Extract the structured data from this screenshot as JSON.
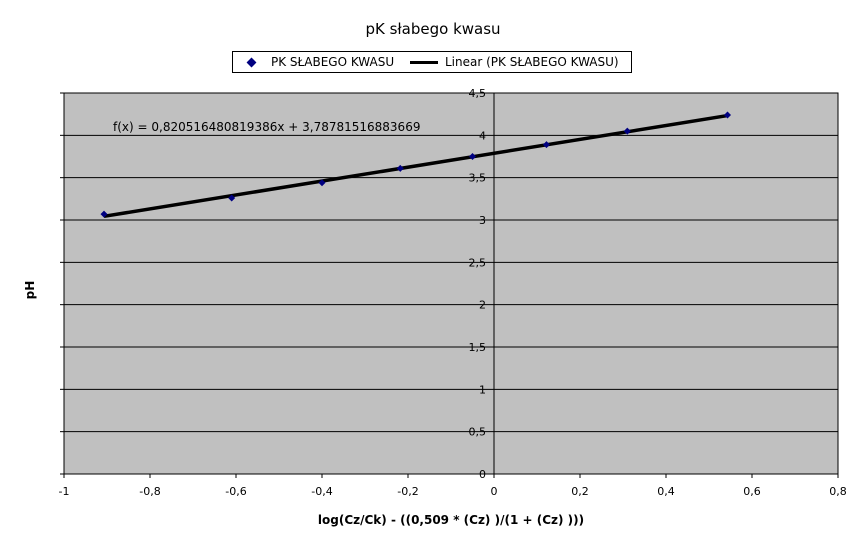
{
  "chart_data": {
    "type": "scatter",
    "title": "pK słabego kwasu",
    "xlabel": "log(Cz/Ck) - ((0,509 * (Cz) )/(1 + (Cz) )))",
    "ylabel": "pH",
    "xlim": [
      -1,
      0.8
    ],
    "ylim": [
      0,
      4.5
    ],
    "xticks": [
      -1,
      -0.8,
      -0.6,
      -0.4,
      -0.2,
      0,
      0.2,
      0.4,
      0.6,
      0.8
    ],
    "xtick_labels": [
      "-1",
      "-0,8",
      "-0,6",
      "-0,4",
      "-0,2",
      "0",
      "0,2",
      "0,4",
      "0,6",
      "0,8"
    ],
    "yticks": [
      0,
      0.5,
      1,
      1.5,
      2,
      2.5,
      3,
      3.5,
      4,
      4.5
    ],
    "ytick_labels": [
      "0",
      "0,5",
      "1",
      "1,5",
      "2",
      "2,5",
      "3",
      "3,5",
      "4",
      "4,5"
    ],
    "grid": "horizontal",
    "background_color": "#c0c0c0",
    "marker_color": "#000080",
    "trend_color": "#000000",
    "legend_position": "top",
    "legend": [
      "PK SŁABEGO KWASU",
      "Linear (PK SŁABEGO KWASU)"
    ],
    "series": [
      {
        "name": "PK SŁABEGO KWASU",
        "marker": "diamond",
        "x": [
          -0.907,
          -0.61,
          -0.4,
          -0.218,
          -0.05,
          0.122,
          0.31,
          0.543
        ],
        "y": [
          3.07,
          3.26,
          3.44,
          3.61,
          3.75,
          3.89,
          4.05,
          4.24
        ]
      }
    ],
    "trendline": {
      "name": "Linear (PK SŁABEGO KWASU)",
      "slope": 0.820516480819386,
      "intercept": 3.78781516883669,
      "x_range": [
        -0.907,
        0.543
      ],
      "equation": "f(x) = 0,820516480819386x + 3,78781516883669"
    }
  }
}
